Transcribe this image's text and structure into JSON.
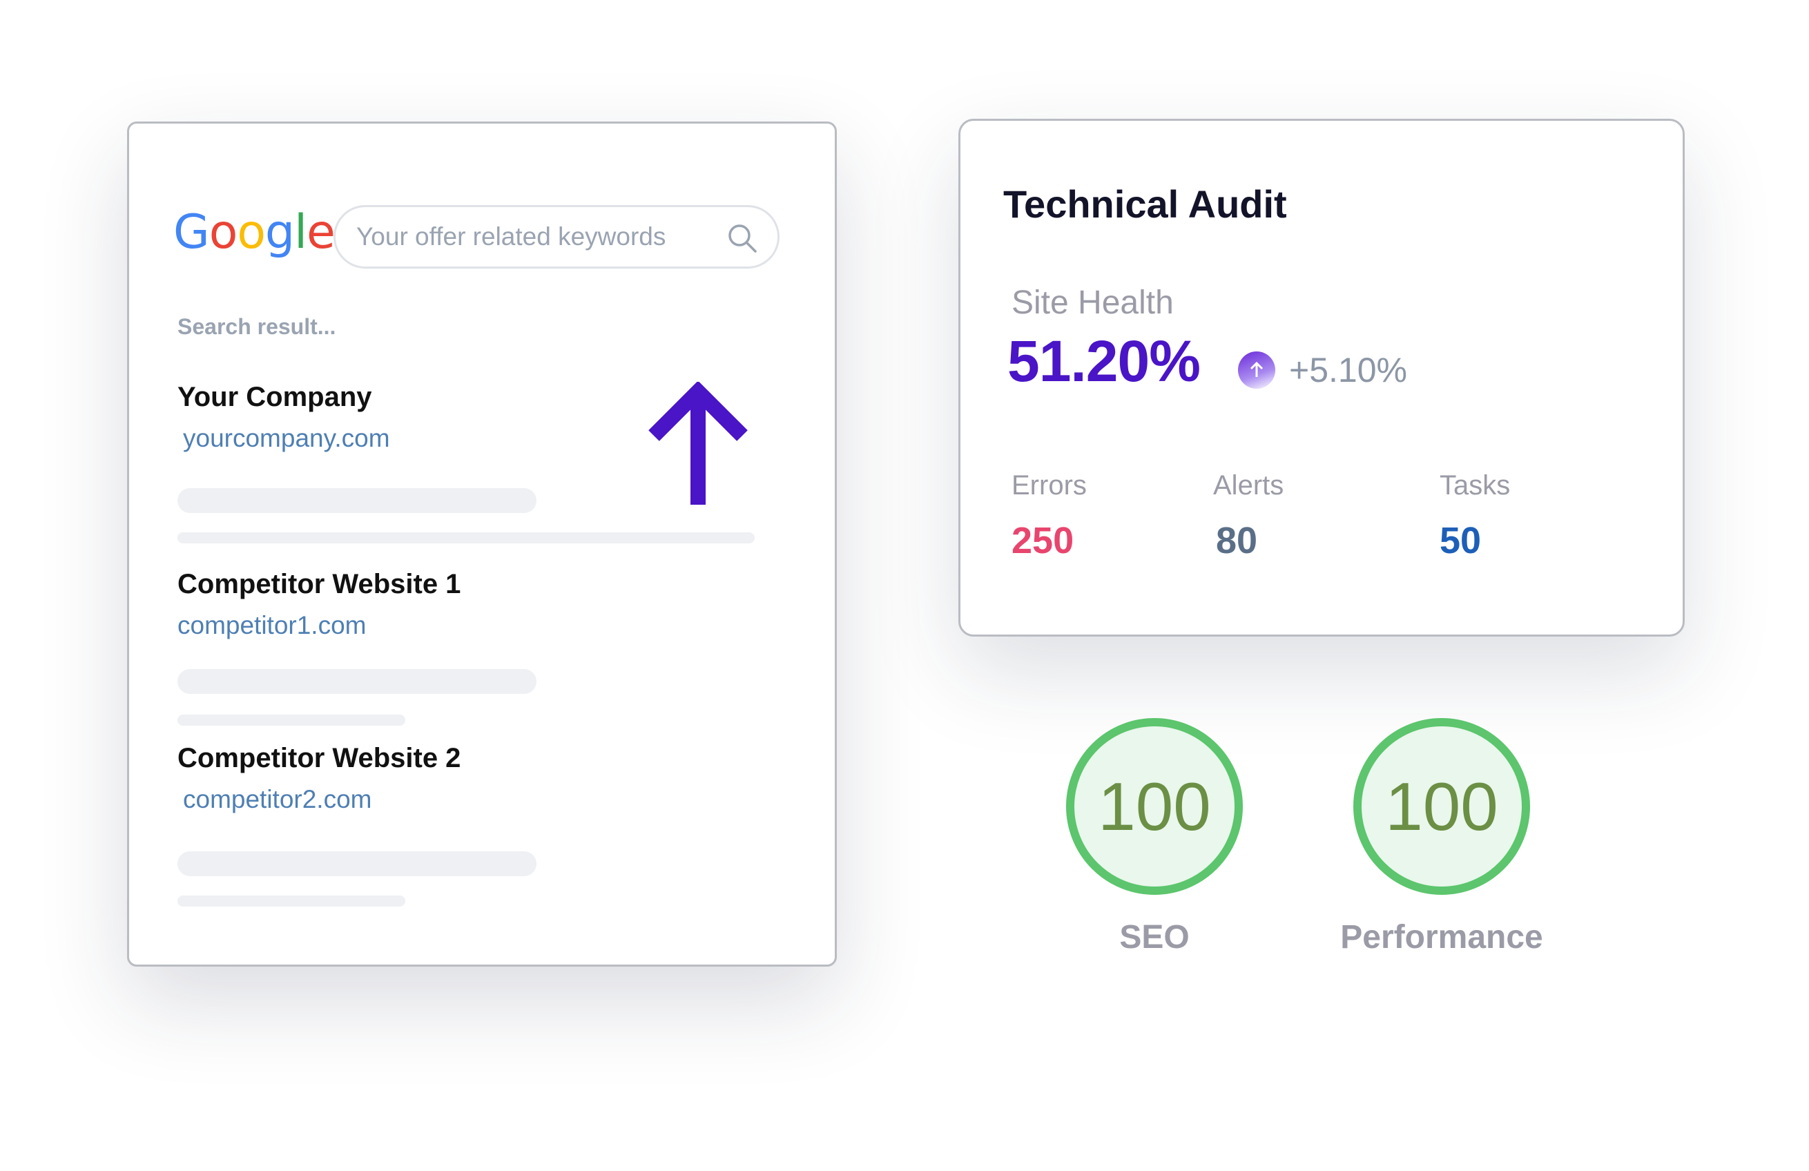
{
  "search_card": {
    "logo_letters": [
      "G",
      "o",
      "o",
      "g",
      "l",
      "e"
    ],
    "search_placeholder": "Your offer related keywords",
    "results_label": "Search result...",
    "results": [
      {
        "title": "Your Company",
        "url": "yourcompany.com"
      },
      {
        "title": "Competitor Website 1",
        "url": "competitor1.com"
      },
      {
        "title": "Competitor Website 2",
        "url": "competitor2.com"
      }
    ],
    "arrow_icon": "arrow-up-icon",
    "arrow_color": "#4a14c7"
  },
  "audit_card": {
    "title": "Technical Audit",
    "site_health_label": "Site Health",
    "site_health_value": "51.20%",
    "change_value": "+5.10%",
    "change_icon": "arrow-up-circle-icon",
    "stats": [
      {
        "label": "Errors",
        "value": "250",
        "color": "#e8456e"
      },
      {
        "label": "Alerts",
        "value": "80",
        "color": "#5a6f87"
      },
      {
        "label": "Tasks",
        "value": "50",
        "color": "#1d5fb8"
      }
    ]
  },
  "scores": [
    {
      "value": "100",
      "label": "SEO"
    },
    {
      "value": "100",
      "label": "Performance"
    }
  ],
  "colors": {
    "logo": [
      "#4285F4",
      "#EA4335",
      "#FBBC05",
      "#4285F4",
      "#34A853",
      "#EA4335"
    ],
    "link": "#4e7fb3",
    "score_ring": "#5cc56d"
  }
}
